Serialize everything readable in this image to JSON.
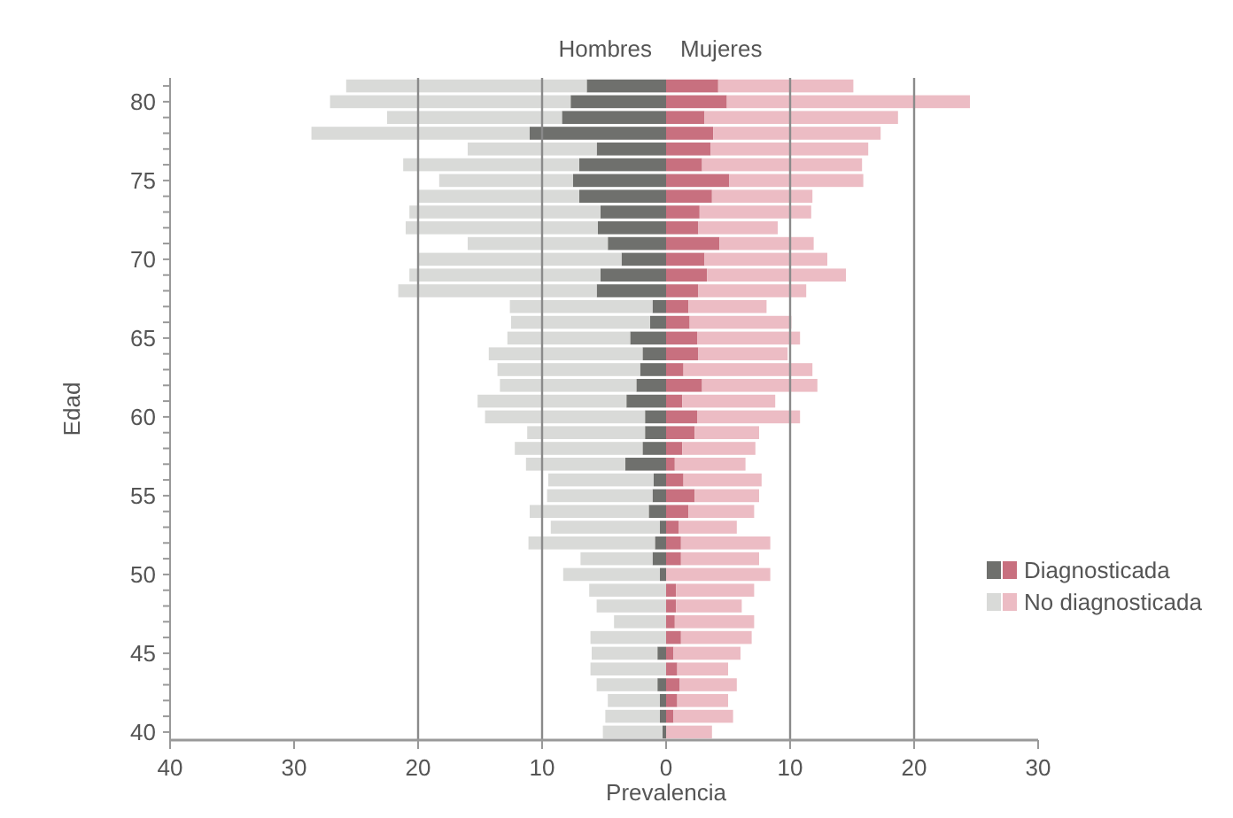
{
  "chart_data": {
    "type": "bar",
    "orientation": "horizontal",
    "stacked": true,
    "xlabel": "Prevalencia",
    "ylabel": "Edad",
    "annotations": [
      "Hombres",
      "Mujeres"
    ],
    "categories": [
      null,
      "80",
      null,
      null,
      null,
      null,
      "75",
      null,
      null,
      null,
      null,
      "70",
      null,
      null,
      null,
      null,
      "65",
      null,
      null,
      null,
      null,
      "60",
      null,
      null,
      null,
      null,
      "55",
      null,
      null,
      null,
      null,
      "50",
      null,
      null,
      null,
      null,
      "45",
      null,
      null,
      null,
      null,
      "40"
    ],
    "series": [
      {
        "name": "Diagnosticada",
        "color": "#6f706d",
        "values": [
          -6.4,
          -7.7,
          -8.4,
          -11.0,
          -5.6,
          -7.0,
          -7.5,
          -7.0,
          -5.3,
          -5.5,
          -4.7,
          -3.6,
          -5.3,
          -5.6,
          -1.1,
          -1.3,
          -2.9,
          -1.9,
          -2.1,
          -2.4,
          -3.2,
          -1.7,
          -1.7,
          -1.9,
          -3.3,
          -1.0,
          -1.1,
          -1.4,
          -0.5,
          -0.9,
          -1.1,
          -0.5,
          0,
          0,
          0,
          0,
          -0.7,
          0,
          -0.7,
          -0.5,
          -0.5,
          -0.3
        ]
      },
      {
        "name": "No diagnosticada",
        "color": "#d9dad8",
        "values": [
          -19.4,
          -19.4,
          -14.1,
          -17.6,
          -10.4,
          -14.2,
          -10.8,
          -13.0,
          -15.4,
          -15.5,
          -11.3,
          -16.4,
          -15.4,
          -16.0,
          -11.5,
          -11.2,
          -9.9,
          -12.4,
          -11.5,
          -11.0,
          -12.0,
          -12.9,
          -9.5,
          -10.3,
          -8.0,
          -8.5,
          -8.5,
          -9.6,
          -8.8,
          -10.2,
          -5.8,
          -7.8,
          -6.2,
          -5.6,
          -4.2,
          -6.1,
          -5.3,
          -6.1,
          -4.9,
          -4.2,
          -4.4,
          -4.8
        ]
      },
      {
        "color": "#c8707f",
        "values": [
          4.2,
          4.9,
          3.1,
          3.8,
          3.6,
          2.9,
          5.1,
          3.7,
          2.7,
          2.6,
          4.3,
          3.1,
          3.3,
          2.6,
          1.8,
          1.9,
          2.5,
          2.6,
          1.4,
          2.9,
          1.3,
          2.5,
          2.3,
          1.3,
          0.7,
          1.4,
          2.3,
          1.8,
          1.0,
          1.2,
          1.2,
          0,
          0.8,
          0.8,
          0.7,
          1.2,
          0.6,
          0.9,
          1.1,
          0.9,
          0.6,
          0
        ]
      },
      {
        "color": "#ecbcc4",
        "values": [
          10.9,
          19.6,
          15.6,
          13.5,
          12.7,
          12.9,
          10.8,
          8.1,
          9.0,
          6.4,
          7.6,
          9.9,
          11.2,
          8.7,
          6.3,
          8.2,
          8.3,
          7.2,
          10.4,
          9.3,
          7.5,
          8.3,
          5.2,
          5.9,
          5.7,
          6.3,
          5.2,
          5.3,
          4.7,
          7.2,
          6.3,
          8.4,
          6.3,
          5.3,
          6.4,
          5.7,
          5.4,
          4.1,
          4.6,
          4.1,
          4.8,
          3.7
        ]
      }
    ],
    "xlim": [
      -40,
      30
    ],
    "xticks": [
      {
        "value": -40,
        "label": "40"
      },
      {
        "value": -30,
        "label": "30"
      },
      {
        "value": -20,
        "label": "20"
      },
      {
        "value": -10,
        "label": "10"
      },
      0,
      10,
      20,
      30
    ],
    "ref_lines": [
      {
        "axis": "x",
        "value": -20,
        "color": "#8a8a8a"
      },
      {
        "axis": "x",
        "value": -10,
        "color": "#8a8a8a"
      },
      {
        "axis": "x",
        "value": 10,
        "color": "#8a8a8a"
      },
      {
        "axis": "x",
        "value": 20,
        "color": "#8a8a8a"
      }
    ],
    "legend": "right"
  }
}
